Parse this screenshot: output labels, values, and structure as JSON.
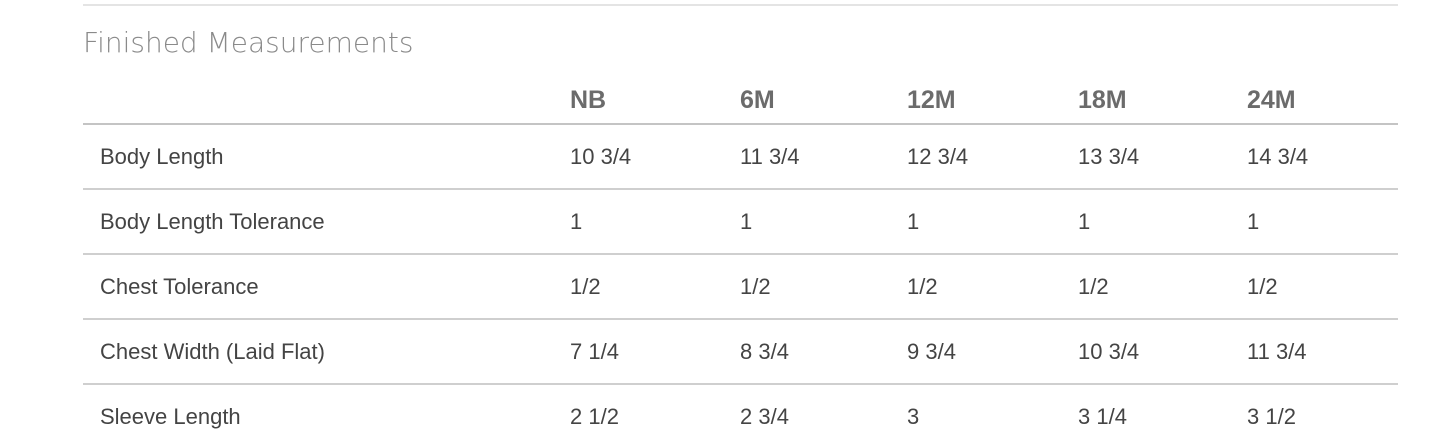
{
  "section_title": "Finished Measurements",
  "columns": [
    "",
    "NB",
    "6M",
    "12M",
    "18M",
    "24M"
  ],
  "rows": [
    {
      "label": "Body Length",
      "values": [
        "10 3/4",
        "11 3/4",
        "12 3/4",
        "13 3/4",
        "14 3/4"
      ]
    },
    {
      "label": "Body Length Tolerance",
      "values": [
        "1",
        "1",
        "1",
        "1",
        "1"
      ]
    },
    {
      "label": "Chest Tolerance",
      "values": [
        "1/2",
        "1/2",
        "1/2",
        "1/2",
        "1/2"
      ]
    },
    {
      "label": "Chest Width (Laid Flat)",
      "values": [
        "7 1/4",
        "8 3/4",
        "9 3/4",
        "10 3/4",
        "11 3/4"
      ]
    },
    {
      "label": "Sleeve Length",
      "values": [
        "2 1/2",
        "2 3/4",
        "3",
        "3 1/4",
        "3 1/2"
      ]
    }
  ]
}
